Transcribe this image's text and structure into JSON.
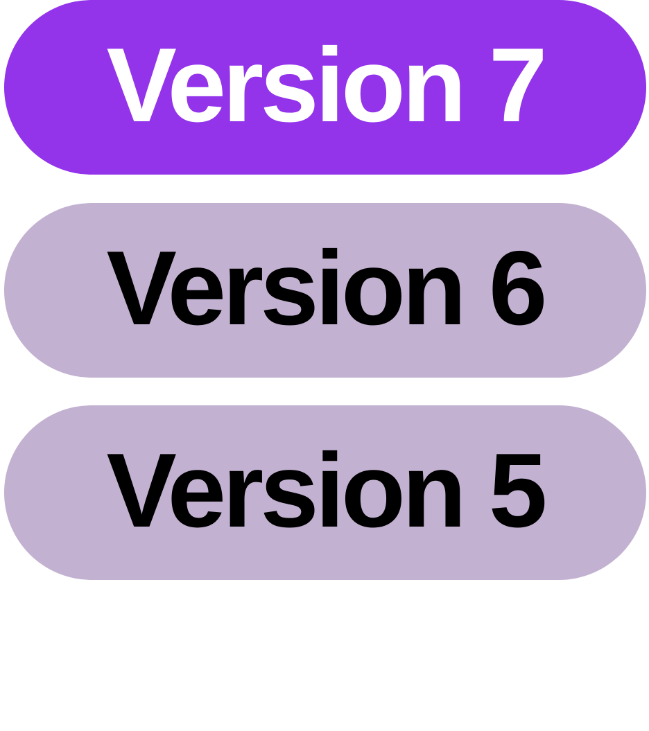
{
  "colors": {
    "selected_bg": "#9333ea",
    "unselected_bg": "#c2b1d1",
    "selected_text": "#ffffff",
    "unselected_text": "#000000"
  },
  "versions": [
    {
      "label": "Version 7",
      "selected": true
    },
    {
      "label": "Version 6",
      "selected": false
    },
    {
      "label": "Version 5",
      "selected": false
    }
  ]
}
